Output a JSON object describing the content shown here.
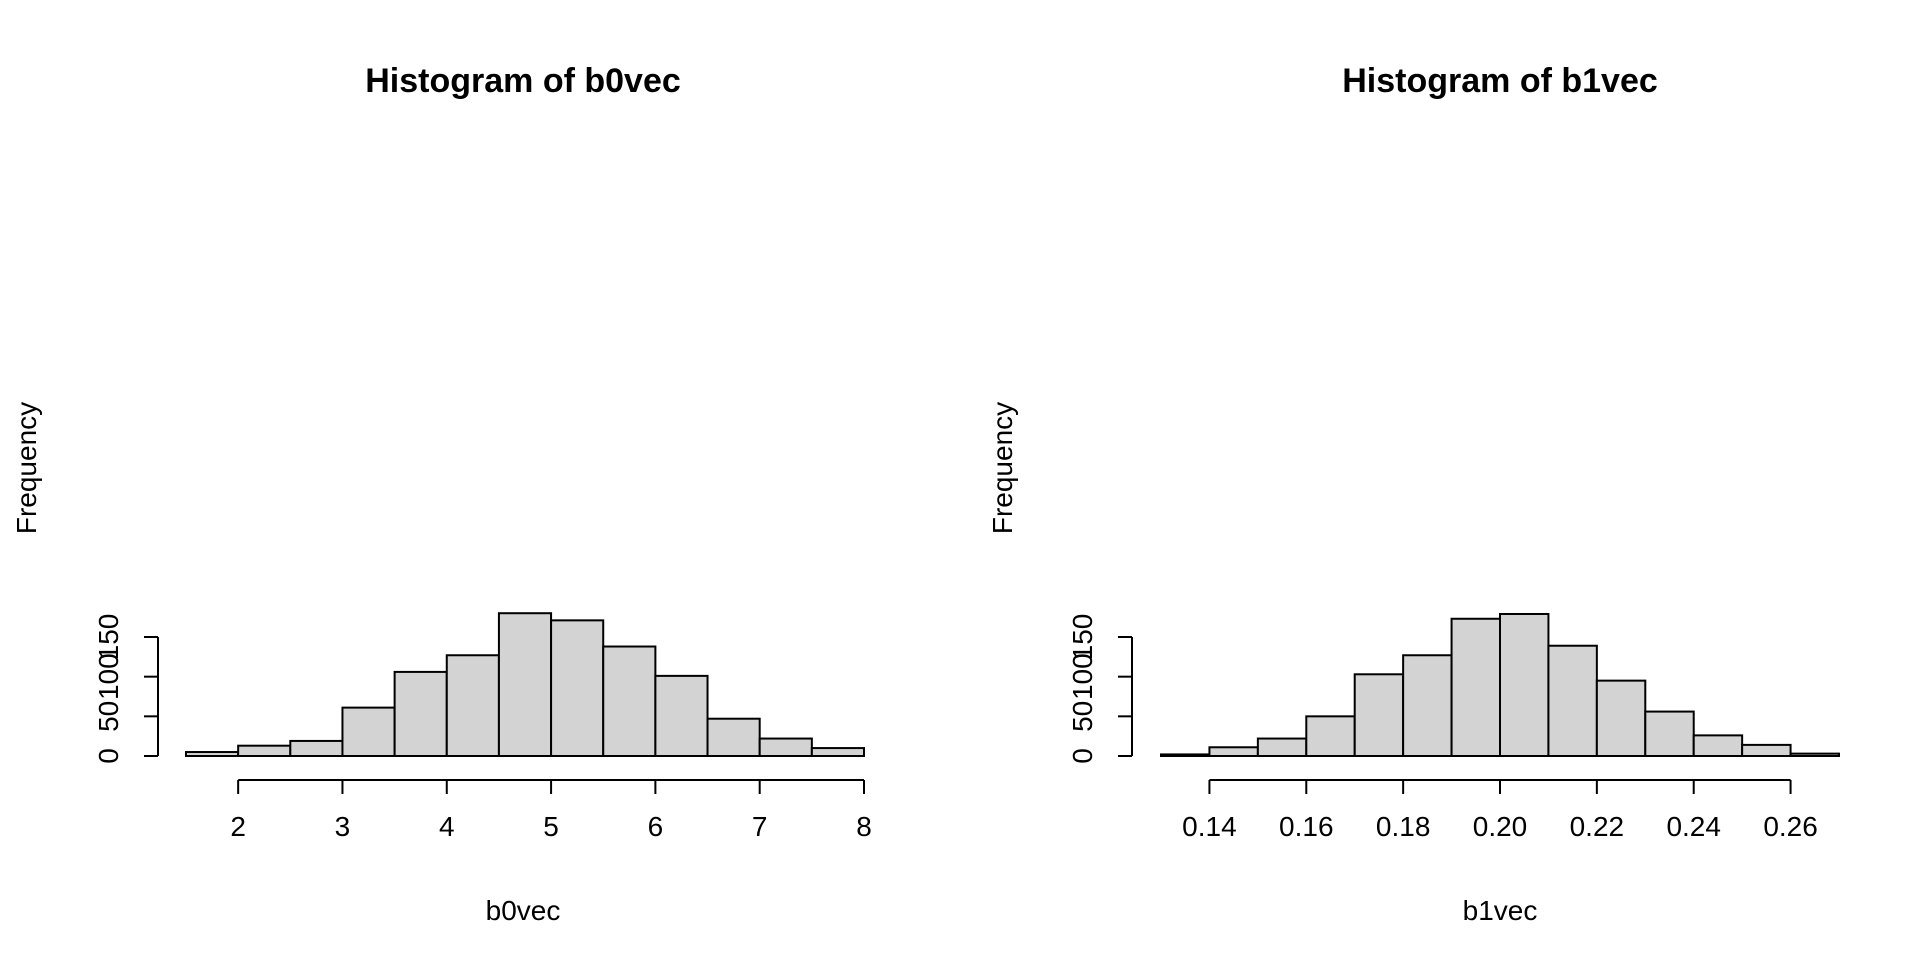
{
  "chart_data": [
    {
      "type": "bar",
      "title": "Histogram of b0vec",
      "xlabel": "b0vec",
      "ylabel": "Frequency",
      "bin_edges": [
        1.5,
        2.0,
        2.5,
        3.0,
        3.5,
        4.0,
        4.5,
        5.0,
        5.5,
        6.0,
        6.5,
        7.0,
        7.5,
        8.0
      ],
      "values": [
        5,
        13,
        19,
        61,
        106,
        127,
        180,
        171,
        138,
        101,
        47,
        22,
        10
      ],
      "xlim": [
        1.5,
        8.0
      ],
      "ylim": [
        0,
        180
      ],
      "xticks": [
        2,
        3,
        4,
        5,
        6,
        7,
        8
      ],
      "xtick_labels": [
        "2",
        "3",
        "4",
        "5",
        "6",
        "7",
        "8"
      ],
      "yticks": [
        0,
        50,
        100,
        150
      ],
      "ytick_labels": [
        "0",
        "50",
        "100",
        "150"
      ],
      "grid": false,
      "bar_color": "#d3d3d3",
      "edge_color": "#000000"
    },
    {
      "type": "bar",
      "title": "Histogram of b1vec",
      "xlabel": "b1vec",
      "ylabel": "Frequency",
      "bin_edges": [
        0.13,
        0.14,
        0.15,
        0.16,
        0.17,
        0.18,
        0.19,
        0.2,
        0.21,
        0.22,
        0.23,
        0.24,
        0.25,
        0.26,
        0.27
      ],
      "values": [
        2,
        11,
        22,
        50,
        103,
        127,
        173,
        179,
        139,
        95,
        56,
        26,
        14,
        3
      ],
      "xlim": [
        0.13,
        0.27
      ],
      "ylim": [
        0,
        180
      ],
      "xticks": [
        0.14,
        0.16,
        0.18,
        0.2,
        0.22,
        0.24,
        0.26
      ],
      "xtick_labels": [
        "0.14",
        "0.16",
        "0.18",
        "0.20",
        "0.22",
        "0.24",
        "0.26"
      ],
      "yticks": [
        0,
        50,
        100,
        150
      ],
      "ytick_labels": [
        "0",
        "50",
        "100",
        "150"
      ],
      "grid": false,
      "bar_color": "#d3d3d3",
      "edge_color": "#000000"
    }
  ]
}
